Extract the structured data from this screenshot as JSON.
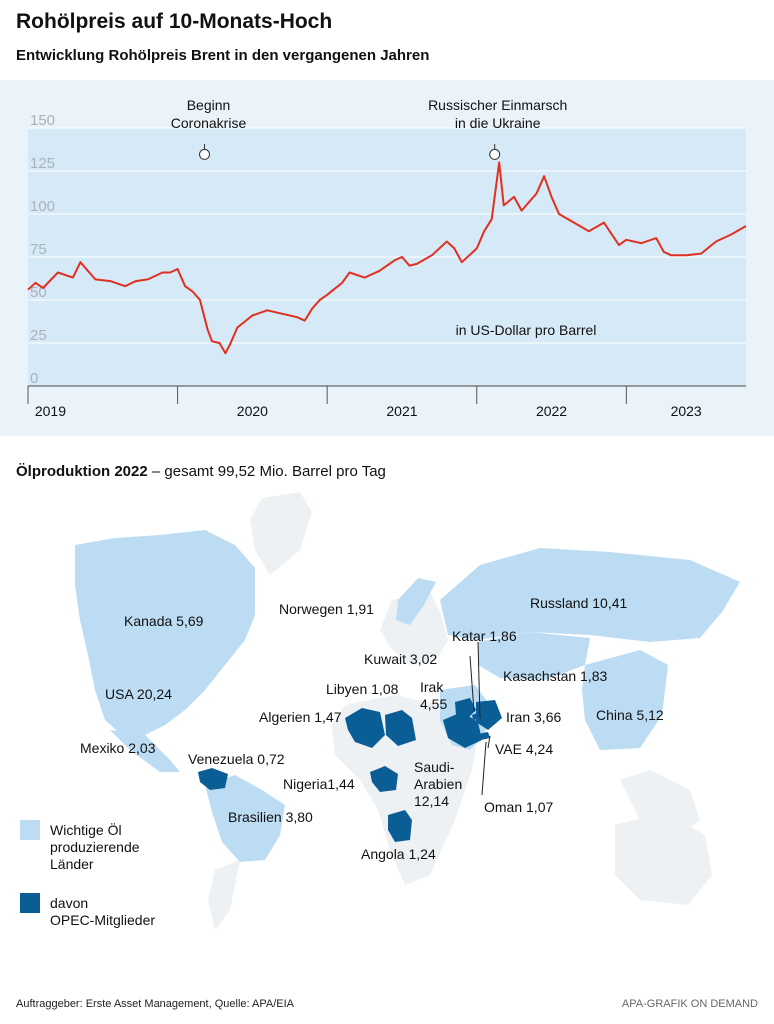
{
  "title": "Rohölpreis auf 10-Monats-Hoch",
  "subtitle": "Entwicklung Rohölpreis Brent in den vergangenen Jahren",
  "chart_data": {
    "type": "line",
    "title": "Entwicklung Rohölpreis Brent in den vergangenen Jahren",
    "unit_label": "in US-Dollar pro Barrel",
    "ylim": [
      0,
      150
    ],
    "y_ticks": [
      "150",
      "125",
      "100",
      "75",
      "50",
      "25",
      "0"
    ],
    "y_tick_values": [
      150,
      125,
      100,
      75,
      50,
      25,
      0
    ],
    "x_range": [
      2019.0,
      2023.8
    ],
    "x_boundaries": [
      2019,
      2020,
      2021,
      2022,
      2023
    ],
    "year_labels": [
      "2019",
      "2020",
      "2021",
      "2022",
      "2023"
    ],
    "year_centers": [
      2019.15,
      2020.5,
      2021.5,
      2022.5,
      2023.4
    ],
    "series": [
      {
        "name": "Brent",
        "color": "#e03020",
        "points": [
          [
            2019.0,
            56
          ],
          [
            2019.05,
            60
          ],
          [
            2019.1,
            57
          ],
          [
            2019.2,
            66
          ],
          [
            2019.3,
            63
          ],
          [
            2019.35,
            72
          ],
          [
            2019.45,
            62
          ],
          [
            2019.55,
            61
          ],
          [
            2019.65,
            58
          ],
          [
            2019.72,
            61
          ],
          [
            2019.8,
            62
          ],
          [
            2019.9,
            66
          ],
          [
            2019.95,
            66
          ],
          [
            2020.0,
            68
          ],
          [
            2020.05,
            58
          ],
          [
            2020.1,
            55
          ],
          [
            2020.15,
            50
          ],
          [
            2020.2,
            33
          ],
          [
            2020.23,
            26
          ],
          [
            2020.28,
            25
          ],
          [
            2020.32,
            19
          ],
          [
            2020.35,
            24
          ],
          [
            2020.4,
            34
          ],
          [
            2020.5,
            41
          ],
          [
            2020.6,
            44
          ],
          [
            2020.7,
            42
          ],
          [
            2020.8,
            40
          ],
          [
            2020.85,
            38
          ],
          [
            2020.9,
            45
          ],
          [
            2020.95,
            50
          ],
          [
            2021.0,
            53
          ],
          [
            2021.1,
            60
          ],
          [
            2021.15,
            66
          ],
          [
            2021.25,
            63
          ],
          [
            2021.35,
            67
          ],
          [
            2021.45,
            73
          ],
          [
            2021.5,
            75
          ],
          [
            2021.55,
            70
          ],
          [
            2021.6,
            71
          ],
          [
            2021.7,
            76
          ],
          [
            2021.8,
            84
          ],
          [
            2021.85,
            80
          ],
          [
            2021.9,
            72
          ],
          [
            2021.95,
            76
          ],
          [
            2022.0,
            80
          ],
          [
            2022.05,
            90
          ],
          [
            2022.1,
            97
          ],
          [
            2022.15,
            130
          ],
          [
            2022.18,
            105
          ],
          [
            2022.25,
            110
          ],
          [
            2022.3,
            102
          ],
          [
            2022.4,
            112
          ],
          [
            2022.45,
            122
          ],
          [
            2022.5,
            110
          ],
          [
            2022.55,
            100
          ],
          [
            2022.65,
            95
          ],
          [
            2022.75,
            90
          ],
          [
            2022.85,
            95
          ],
          [
            2022.95,
            82
          ],
          [
            2023.0,
            85
          ],
          [
            2023.1,
            83
          ],
          [
            2023.2,
            86
          ],
          [
            2023.25,
            78
          ],
          [
            2023.3,
            76
          ],
          [
            2023.4,
            76
          ],
          [
            2023.5,
            77
          ],
          [
            2023.6,
            84
          ],
          [
            2023.7,
            88
          ],
          [
            2023.8,
            93
          ]
        ]
      }
    ],
    "annotations": [
      {
        "x": 2020.18,
        "y_data": 130,
        "lines": [
          "Beginn",
          "Coronakrise"
        ]
      },
      {
        "x": 2022.12,
        "y_data": 130,
        "lines": [
          "Russischer Einmarsch",
          "in die Ukraine"
        ]
      }
    ]
  },
  "production": {
    "heading_bold": "Ölproduktion 2022",
    "heading_rest": " – gesamt 99,52",
    "heading_unit": "Mio. Barrel pro Tag",
    "labels": {
      "kanada": "Kanada 5,69",
      "norwegen": "Norwegen 1,91",
      "russland": "Russland 10,41",
      "katar": "Katar 1,86",
      "kuwait": "Kuwait 3,02",
      "kasachstan": "Kasachstan 1,83",
      "libyen": "Libyen 1,08",
      "irak": "Irak\n4,55",
      "usa": "USA 20,24",
      "algerien": "Algerien 1,47",
      "iran": "Iran 3,66",
      "china": "China 5,12",
      "mexiko": "Mexiko 2,03",
      "venezuela": "Venezuela 0,72",
      "vae": "VAE 4,24",
      "saudi": "Saudi-\nArabien\n12,14",
      "nigeria": "Nigeria1,44",
      "oman": "Oman 1,07",
      "brasilien": "Brasilien 3,80",
      "angola": "Angola 1,24"
    },
    "legend": {
      "important": "Wichtige Öl\nproduzierende\nLänder",
      "opec": "davon\nOPEC-Mitglieder"
    },
    "colors": {
      "land": "#eef1f4",
      "producer": "#bcdcf4",
      "opec": "#0b5d96"
    }
  },
  "footer": {
    "left": "Auftraggeber: Erste Asset Management, Quelle: APA/EIA",
    "right": "APA-GRAFIK ON DEMAND"
  }
}
